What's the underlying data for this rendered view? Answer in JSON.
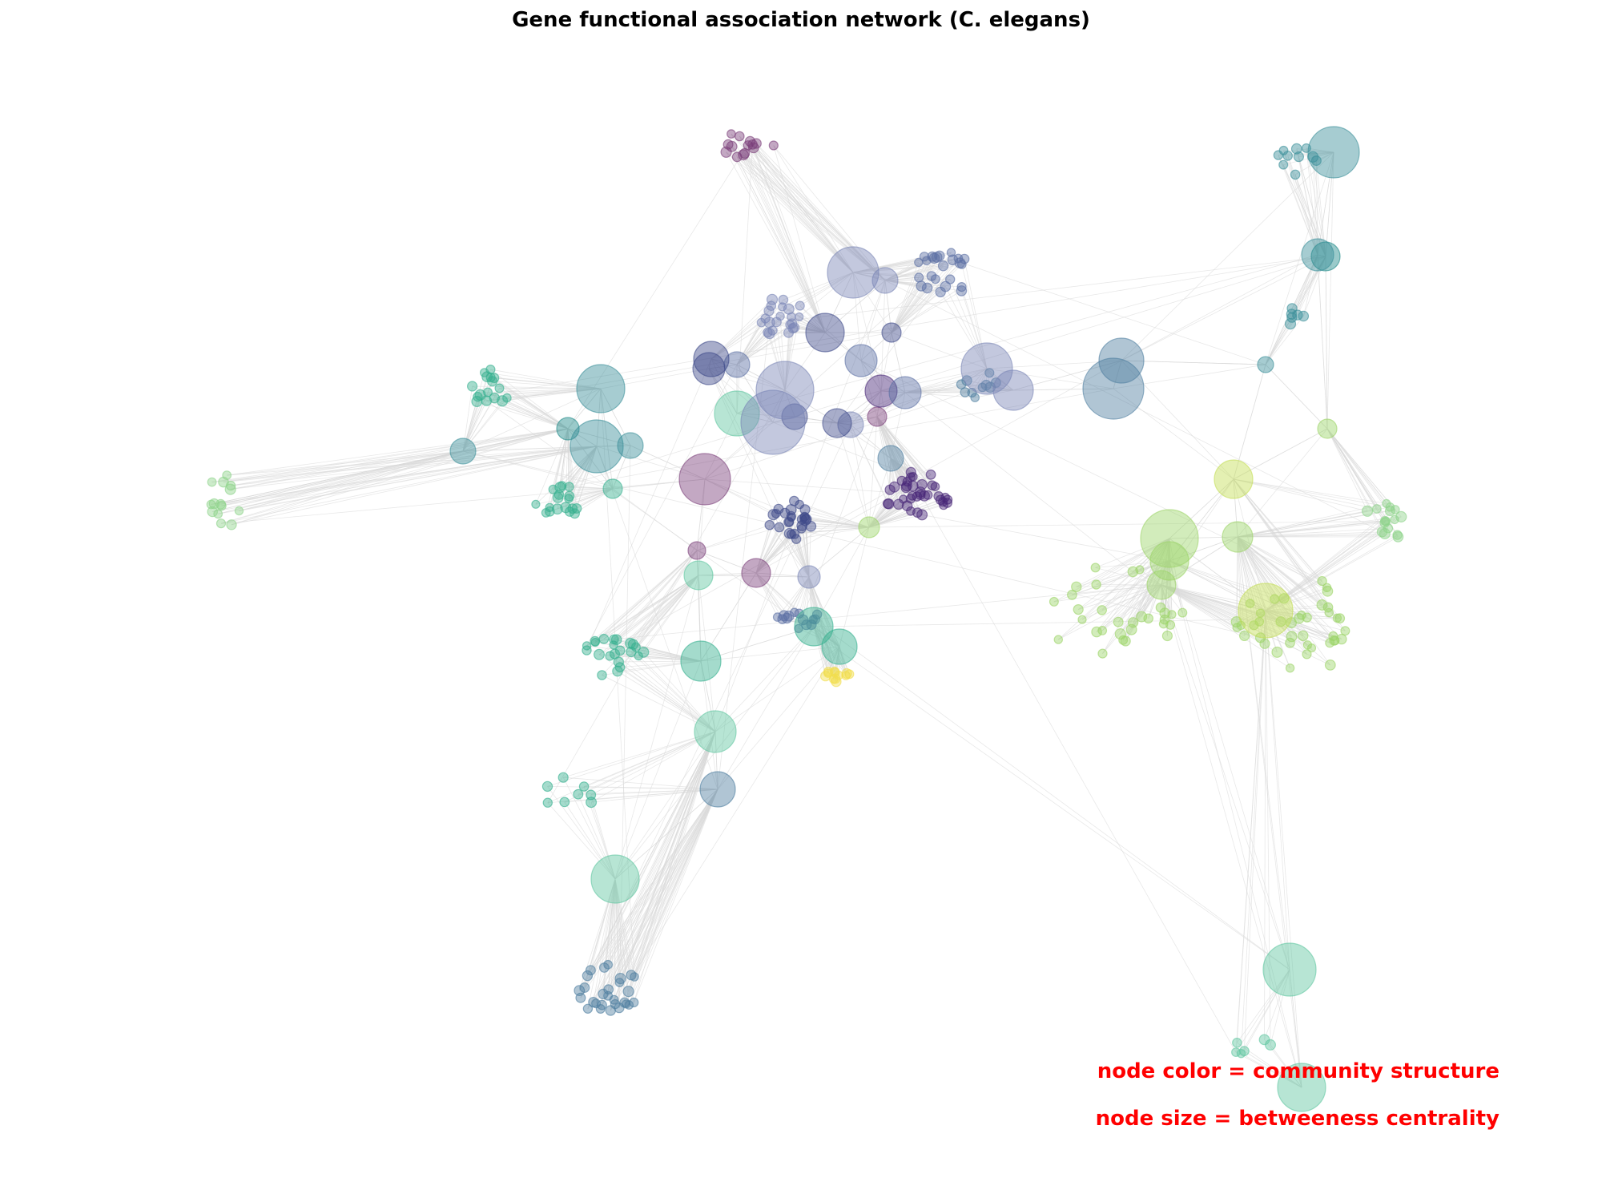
{
  "figure": {
    "title": "Gene functional association network (C. elegans)"
  },
  "annotations": [
    {
      "text": "node color = community structure",
      "color": "#ff0000"
    },
    {
      "text": "node size = betweeness centrality",
      "color": "#ff0000"
    }
  ],
  "style": {
    "edge_color": "#d9d9d9",
    "node_opacity": 0.45,
    "colormap": "viridis"
  }
}
